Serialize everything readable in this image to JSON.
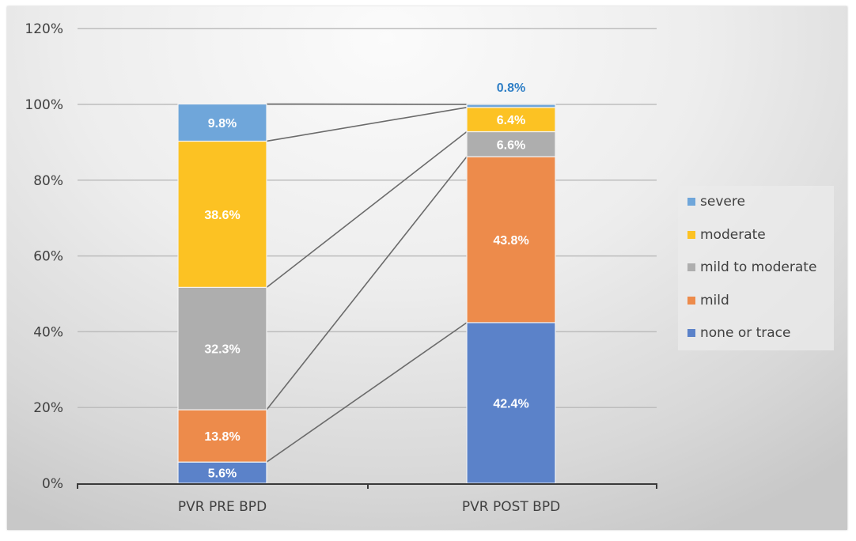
{
  "chart_data": {
    "type": "bar",
    "subtype": "stacked-100",
    "title": "",
    "xlabel": "",
    "ylabel": "",
    "ylim": [
      0,
      120
    ],
    "yticks": [
      "0%",
      "20%",
      "40%",
      "60%",
      "80%",
      "100%",
      "120%"
    ],
    "grid": true,
    "series_lines": true,
    "legend_position": "right",
    "categories": [
      "PVR PRE BPD",
      "PVR POST BPD"
    ],
    "series": [
      {
        "name": "none or trace",
        "color": "#5b82c9",
        "values": [
          5.6,
          42.4
        ],
        "labels": [
          "5.6%",
          "42.4%"
        ]
      },
      {
        "name": "mild",
        "color": "#ed8b4b",
        "values": [
          13.8,
          43.8
        ],
        "labels": [
          "13.8%",
          "43.8%"
        ]
      },
      {
        "name": "mild to moderate",
        "color": "#aeaeae",
        "values": [
          32.3,
          6.6
        ],
        "labels": [
          "32.3%",
          "6.6%"
        ]
      },
      {
        "name": "moderate",
        "color": "#fcc223",
        "values": [
          38.6,
          6.4
        ],
        "labels": [
          "38.6%",
          "6.4%"
        ]
      },
      {
        "name": "severe",
        "color": "#6fa6da",
        "values": [
          9.8,
          0.8
        ],
        "labels": [
          "9.8%",
          "0.8%"
        ]
      }
    ],
    "legend_order": [
      "severe",
      "moderate",
      "mild to moderate",
      "mild",
      "none or trace"
    ]
  },
  "ui": {
    "colors": {
      "text": "#404040",
      "gridline": "#bdbdbd",
      "axis": "#3a3a3a",
      "series_line": "#6b6b6b",
      "outside_label": "#2f7fc6"
    }
  }
}
